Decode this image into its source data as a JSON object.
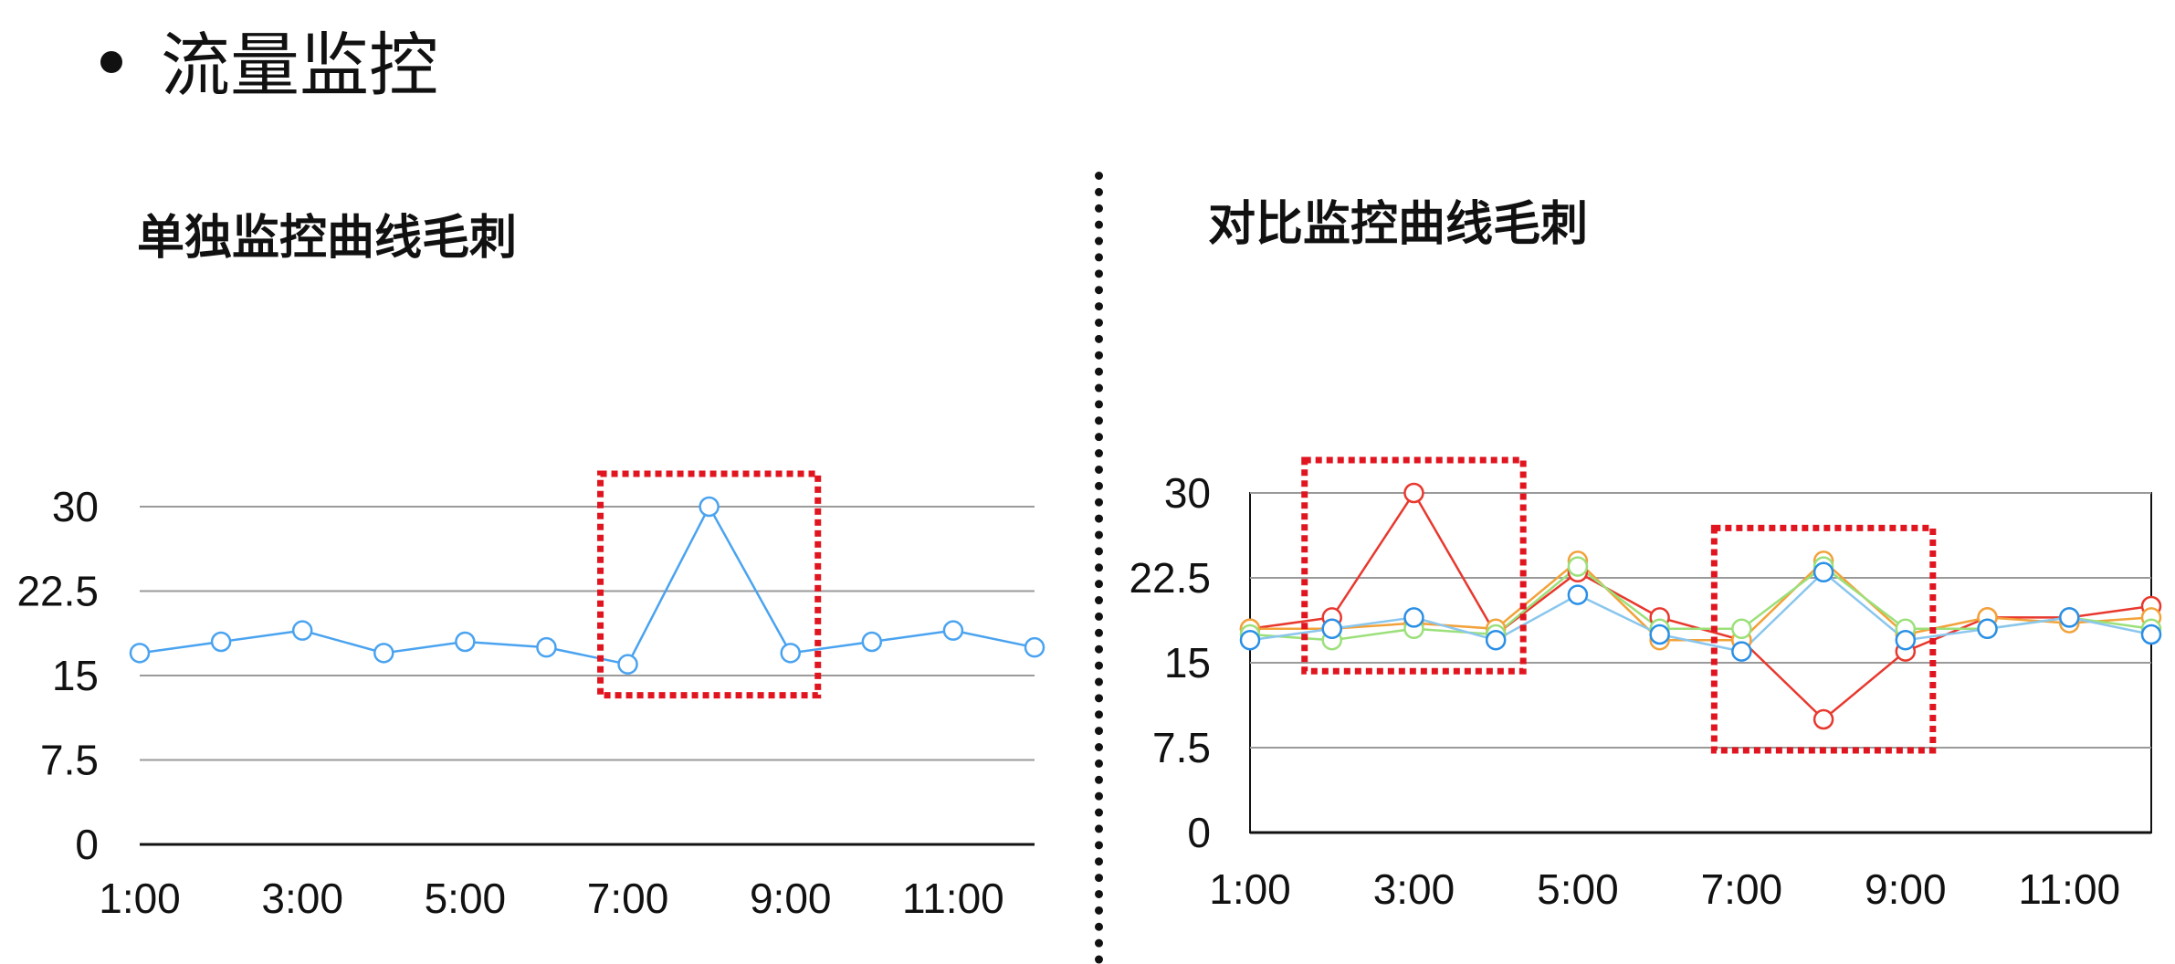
{
  "heading": "流量监控",
  "chart_data": [
    {
      "type": "line",
      "title": "单独监控曲线毛刺",
      "xlabel": "",
      "ylabel": "",
      "x": [
        "1:00",
        "2:00",
        "3:00",
        "4:00",
        "5:00",
        "6:00",
        "7:00",
        "8:00",
        "9:00",
        "10:00",
        "11:00",
        "12:00"
      ],
      "x_tick_labels": [
        "1:00",
        "3:00",
        "5:00",
        "7:00",
        "9:00",
        "11:00"
      ],
      "y_ticks": [
        "0",
        "7.5",
        "15",
        "22.5",
        "30"
      ],
      "ylim": [
        0,
        30
      ],
      "grid": true,
      "series": [
        {
          "color": "#4aa3f0",
          "values": [
            17,
            18,
            19,
            17,
            18,
            17.5,
            16,
            30,
            17,
            18,
            19,
            17.5
          ]
        }
      ],
      "highlight_box_range": [
        "7:00",
        "9:00"
      ],
      "highlight_color": "#e0151f"
    },
    {
      "type": "line",
      "title": "对比监控曲线毛刺",
      "xlabel": "",
      "ylabel": "",
      "x": [
        "1:00",
        "2:00",
        "3:00",
        "4:00",
        "5:00",
        "6:00",
        "7:00",
        "8:00",
        "9:00",
        "10:00",
        "11:00",
        "12:00"
      ],
      "x_tick_labels": [
        "1:00",
        "3:00",
        "5:00",
        "7:00",
        "9:00",
        "11:00"
      ],
      "y_ticks": [
        "0",
        "7.5",
        "15",
        "22.5",
        "30"
      ],
      "ylim": [
        0,
        30
      ],
      "grid": true,
      "frame": true,
      "series": [
        {
          "color": "#e8382e",
          "values": [
            18,
            19,
            30,
            17.5,
            23,
            19,
            17,
            10,
            16,
            19,
            19,
            20
          ]
        },
        {
          "color": "#f2a23a",
          "values": [
            18,
            18,
            18.5,
            18,
            24,
            17,
            17,
            24,
            17.5,
            19,
            18.5,
            19
          ]
        },
        {
          "color": "#9be07a",
          "values": [
            17.5,
            17,
            18,
            17.5,
            23.5,
            18,
            18,
            23.5,
            18,
            18,
            19,
            18
          ]
        },
        {
          "color": "#8ac6ee",
          "values": [
            17,
            18,
            19,
            17,
            21,
            17.5,
            16,
            23,
            17,
            18,
            19,
            17.5
          ]
        }
      ],
      "marker_overlay_color": "#2a8fe6",
      "highlight_box_ranges": [
        [
          "2:00",
          "4:00"
        ],
        [
          "7:00",
          "9:00"
        ]
      ],
      "highlight_color": "#e0151f"
    }
  ]
}
